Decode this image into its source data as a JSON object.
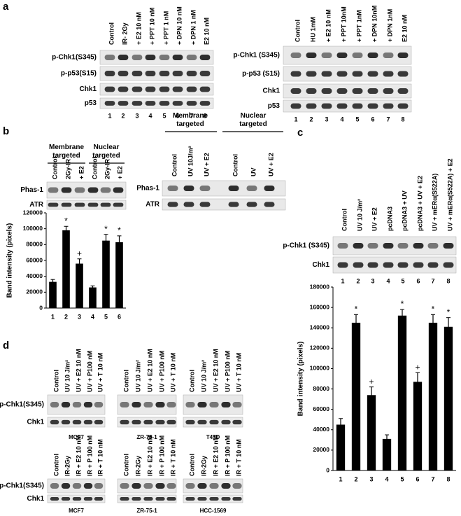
{
  "panels": {
    "a": {
      "label": "a",
      "left": {
        "lanes": [
          "Control",
          "IR- 2Gy",
          "+ E2 10 nM",
          "+ PPT 10 nM",
          "+ PPT 1 nM",
          "+ DPN 10 nM",
          "+ DPN 1 nM",
          "E2 10 nM"
        ],
        "rows": [
          "p-Chk1(S345)",
          "p-p53(S15)",
          "Chk1",
          "p53"
        ],
        "numbers": [
          1,
          2,
          3,
          4,
          5,
          6,
          7,
          8
        ]
      },
      "right": {
        "lanes": [
          "Control",
          "HU 1mM",
          "+ E2 10 nM",
          "+ PPT 10nM",
          "+ PPT 1nM",
          "+ DPN 10nM",
          "+ DPN 1nM",
          "E2 10 nM"
        ],
        "rows": [
          "p-Chk1 (S345)",
          "p-p53 (S15)",
          "Chk1",
          "p53"
        ],
        "numbers": [
          1,
          2,
          3,
          4,
          5,
          6,
          7,
          8
        ]
      }
    },
    "b": {
      "label": "b",
      "left": {
        "groups": [
          "Membrane targeted",
          "Nuclear targeted"
        ],
        "lanes": [
          "Control",
          "2Gy-IR",
          "+ E2",
          "Control",
          "2Gy-IR",
          "+ E2"
        ],
        "rows": [
          "Phas-1",
          "ATR"
        ]
      },
      "right": {
        "groups": [
          "Membrane targeted",
          "Nuclear targeted"
        ],
        "lanes": [
          "Control",
          "UV 10J/m²",
          "UV + E2",
          "Control",
          "UV",
          "UV + E2"
        ],
        "rows": [
          "Phas-1",
          "ATR"
        ]
      }
    },
    "c": {
      "label": "c",
      "lanes": [
        "Control",
        "UV 10 J/m²",
        "UV + E2",
        "pcDNA3",
        "pcDNA3 + UV",
        "pcDNA3 + UV + E2",
        "UV + mERα(S522A)",
        "UV + mERα(S522A) + E2"
      ],
      "rows": [
        "p-Chk1 (S345)",
        "Chk1"
      ],
      "numbers": [
        1,
        2,
        3,
        4,
        5,
        6,
        7,
        8
      ]
    },
    "d": {
      "label": "d",
      "top": {
        "rows": [
          "p-Chk1(S345)",
          "Chk1"
        ],
        "blots": [
          {
            "lanes": [
              "Control",
              "UV 10 J/m²",
              "UV + E2 10 nM",
              "UV + P100 nM",
              "UV + T 10 nM"
            ],
            "cell": "MCF7"
          },
          {
            "lanes": [
              "Control",
              "UV 10 J/m²",
              "UV + E2 10 nM",
              "UV + P100 nM",
              "UV + T 10 nM"
            ],
            "cell": "ZR-75-1"
          },
          {
            "lanes": [
              "Control",
              "UV 10 J/m²",
              "UV + E2 10 nM",
              "UV + P100 nM",
              "UV + T 10 nM"
            ],
            "cell": "T47D"
          }
        ]
      },
      "bottom": {
        "rows": [
          "p-Chk1(S345)",
          "Chk1"
        ],
        "blots": [
          {
            "lanes": [
              "Control",
              "IR-2Gy",
              "IR + E2 10 nM",
              "IR + P 100 nM",
              "IR + T 10 nM"
            ],
            "cell": "MCF7"
          },
          {
            "lanes": [
              "Control",
              "IR-2Gy",
              "IR + E2 10 nM",
              "IR + P 100 nM",
              "IR + T 10 nM"
            ],
            "cell": "ZR-75-1"
          },
          {
            "lanes": [
              "Control",
              "IR-2Gy",
              "IR + E2 10 nM",
              "IR + P 100 nM",
              "IR + T 10 nM"
            ],
            "cell": "HCC-1569"
          }
        ]
      }
    }
  },
  "chart_data": [
    {
      "type": "bar",
      "y_label": "Band intensity (pixels)",
      "categories": [
        "1",
        "2",
        "3",
        "4",
        "5",
        "6"
      ],
      "values": [
        33000,
        98000,
        56000,
        26000,
        85000,
        83000
      ],
      "errors": [
        3000,
        5000,
        6000,
        2000,
        8000,
        8000
      ],
      "markers": [
        null,
        "*",
        "+",
        null,
        "*",
        "*"
      ],
      "color": "#000000",
      "ylim": [
        0,
        120000
      ],
      "yticks": [
        0,
        20000,
        40000,
        60000,
        80000,
        100000,
        120000
      ]
    },
    {
      "type": "bar",
      "y_label": "Band intensity (pixels)",
      "categories": [
        "1",
        "2",
        "3",
        "4",
        "5",
        "6",
        "7",
        "8"
      ],
      "values": [
        45000,
        145000,
        74000,
        31000,
        152000,
        87000,
        145000,
        141000
      ],
      "errors": [
        6000,
        8000,
        8000,
        4000,
        6000,
        9000,
        8000,
        9000
      ],
      "markers": [
        null,
        "*",
        "+",
        null,
        "*",
        "+",
        "*",
        "*"
      ],
      "color": "#000000",
      "ylim": [
        0,
        180000
      ],
      "yticks": [
        0,
        20000,
        40000,
        60000,
        80000,
        100000,
        120000,
        140000,
        160000,
        180000
      ]
    }
  ]
}
